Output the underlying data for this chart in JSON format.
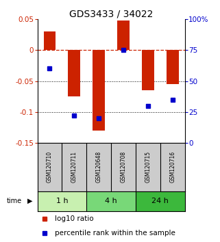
{
  "title": "GDS3433 / 34022",
  "samples": [
    "GSM120710",
    "GSM120711",
    "GSM120648",
    "GSM120708",
    "GSM120715",
    "GSM120716"
  ],
  "log10_ratio": [
    0.03,
    -0.075,
    -0.13,
    0.048,
    -0.065,
    -0.055
  ],
  "percentile_rank": [
    60,
    22,
    20,
    75,
    30,
    35
  ],
  "groups": [
    {
      "label": "1 h",
      "indices": [
        0,
        1
      ],
      "color": "#c8f0b0"
    },
    {
      "label": "4 h",
      "indices": [
        2,
        3
      ],
      "color": "#78d878"
    },
    {
      "label": "24 h",
      "indices": [
        4,
        5
      ],
      "color": "#3cb83c"
    }
  ],
  "ylim_left": [
    -0.15,
    0.05
  ],
  "ylim_right": [
    0,
    100
  ],
  "yticks_left": [
    0.05,
    0,
    -0.05,
    -0.1,
    -0.15
  ],
  "yticks_right": [
    100,
    75,
    50,
    25,
    0
  ],
  "bar_color": "#cc2200",
  "dot_color": "#0000cc",
  "hline_color": "#cc2200",
  "dotline_y": [
    -0.05,
    -0.1
  ],
  "bar_width": 0.5,
  "title_fontsize": 10,
  "tick_fontsize": 7.5,
  "legend_labels": [
    "log10 ratio",
    "percentile rank within the sample"
  ],
  "sample_box_color": "#cccccc",
  "legend_fontsize": 7.5
}
